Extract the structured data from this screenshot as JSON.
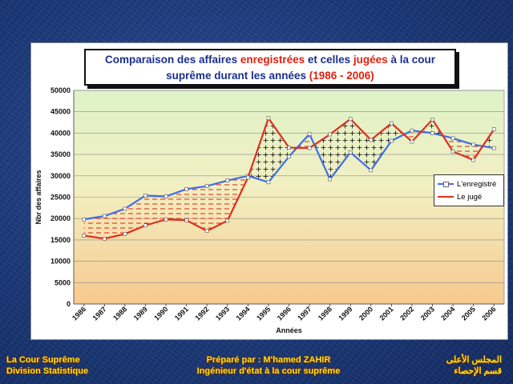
{
  "title": {
    "part1": "Comparaison des affaires ",
    "part2": "enregistrées",
    "part3": " et celles ",
    "part4": "jugées",
    "part5": " à la cour",
    "line2a": "suprême durant les années ",
    "line2b": "(1986 - 2006)"
  },
  "footer": {
    "left_line1": "La Cour Suprême",
    "left_line2": "Division Statistique",
    "center_line1": "Préparé par : M'hamed ZAHIR",
    "center_line2": "Ingénieur d'état à la cour suprême",
    "right_line1": "المجلس الأعلى",
    "right_line2": "قسم الإحصاء"
  },
  "colors": {
    "enregistre": "#3f6ee8",
    "juge": "#e02d1f",
    "title_blue": "#1b2f8f",
    "title_red": "#e0200f",
    "footer_yellow": "#f2e230"
  },
  "chart_data": {
    "type": "line",
    "title": "Comparaison des affaires enregistrées et celles jugées à la cour suprême durant les années (1986 - 2006)",
    "xlabel": "Années",
    "ylabel": "Nbr des affaires",
    "ylim": [
      0,
      50000
    ],
    "yticks": [
      0,
      5000,
      10000,
      15000,
      20000,
      25000,
      30000,
      35000,
      40000,
      45000,
      50000
    ],
    "grid": true,
    "legend_position": "right",
    "categories": [
      "1986",
      "1987",
      "1988",
      "1989",
      "1990",
      "1991",
      "1992",
      "1993",
      "1994",
      "1995",
      "1996",
      "1997",
      "1998",
      "1999",
      "2000",
      "2001",
      "2002",
      "2003",
      "2004",
      "2005",
      "2006"
    ],
    "series": [
      {
        "name": "L'enregistré",
        "values": [
          19800,
          20600,
          22300,
          25400,
          25200,
          26900,
          27600,
          28900,
          30000,
          28500,
          34500,
          39800,
          29200,
          35500,
          31300,
          38200,
          40600,
          40000,
          38800,
          37300,
          36500
        ]
      },
      {
        "name": "Le jugé",
        "values": [
          16000,
          15300,
          16400,
          18400,
          19800,
          19600,
          17100,
          19500,
          29600,
          43500,
          36600,
          36500,
          39700,
          43300,
          38400,
          42300,
          38000,
          43200,
          35700,
          33700,
          40900
        ]
      }
    ]
  }
}
